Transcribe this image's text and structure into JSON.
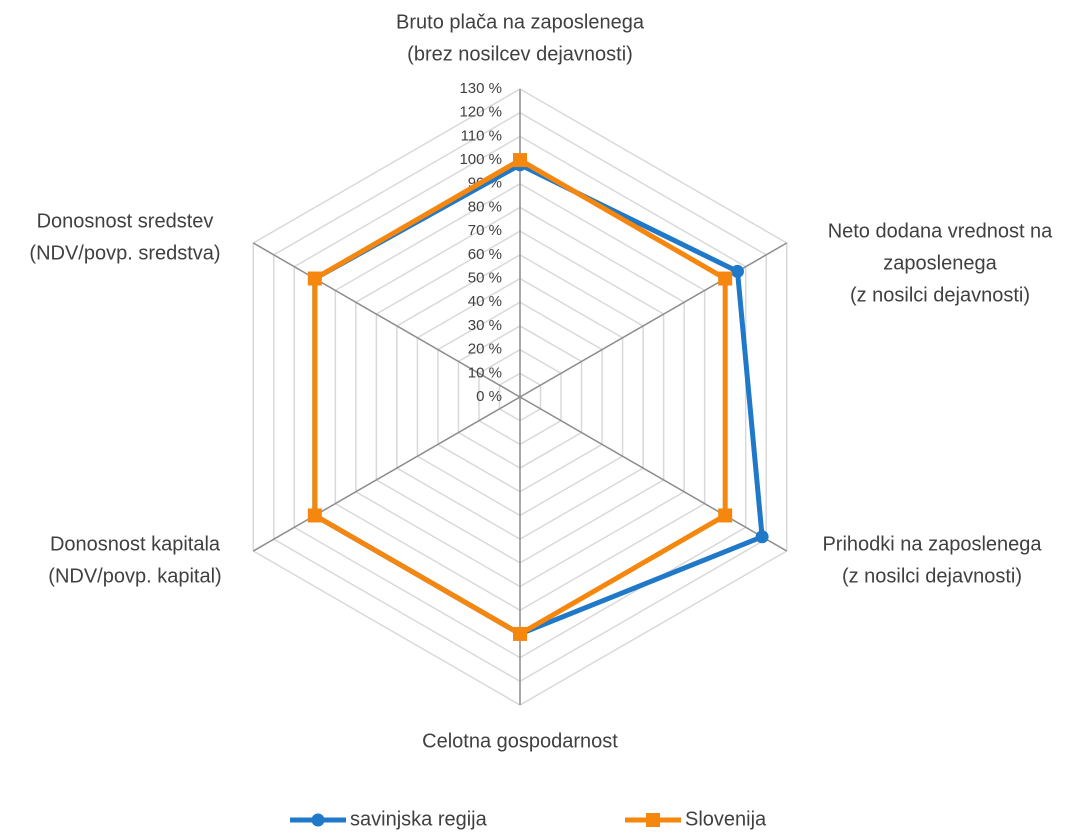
{
  "chart_data": {
    "type": "radar",
    "categories": [
      [
        "Bruto plača na zaposlenega",
        "(brez nosilcev dejavnosti)"
      ],
      [
        "Neto dodana vrednost na",
        "zaposlenega",
        "(z nosilci dejavnosti)"
      ],
      [
        "Prihodki na zaposlenega",
        "(z nosilci dejavnosti)"
      ],
      [
        "Celotna gospodarnost"
      ],
      [
        "Donosnost kapitala",
        "(NDV/povp. kapital)"
      ],
      [
        "Donosnost sredstev",
        "(NDV/povp. sredstva)"
      ]
    ],
    "series": [
      {
        "name": "savinjska regija",
        "color": "#1f78c8",
        "marker": "circle",
        "values": [
          98,
          106,
          118,
          100,
          100,
          100
        ]
      },
      {
        "name": "Slovenija",
        "color": "#f5870f",
        "marker": "square",
        "values": [
          100,
          100,
          100,
          100,
          100,
          100
        ]
      }
    ],
    "ylim": [
      0,
      130
    ],
    "yticks": [
      {
        "value": 0,
        "label": "0 %"
      },
      {
        "value": 10,
        "label": "10 %"
      },
      {
        "value": 20,
        "label": "20 %"
      },
      {
        "value": 30,
        "label": "30 %"
      },
      {
        "value": 40,
        "label": "40 %"
      },
      {
        "value": 50,
        "label": "50 %"
      },
      {
        "value": 60,
        "label": "60 %"
      },
      {
        "value": 70,
        "label": "70 %"
      },
      {
        "value": 80,
        "label": "80 %"
      },
      {
        "value": 90,
        "label": "90 %"
      },
      {
        "value": 100,
        "label": "100 %"
      },
      {
        "value": 110,
        "label": "110 %"
      },
      {
        "value": 120,
        "label": "120 %"
      },
      {
        "value": 130,
        "label": "130 %"
      }
    ],
    "grid": true,
    "legend": "bottom"
  }
}
